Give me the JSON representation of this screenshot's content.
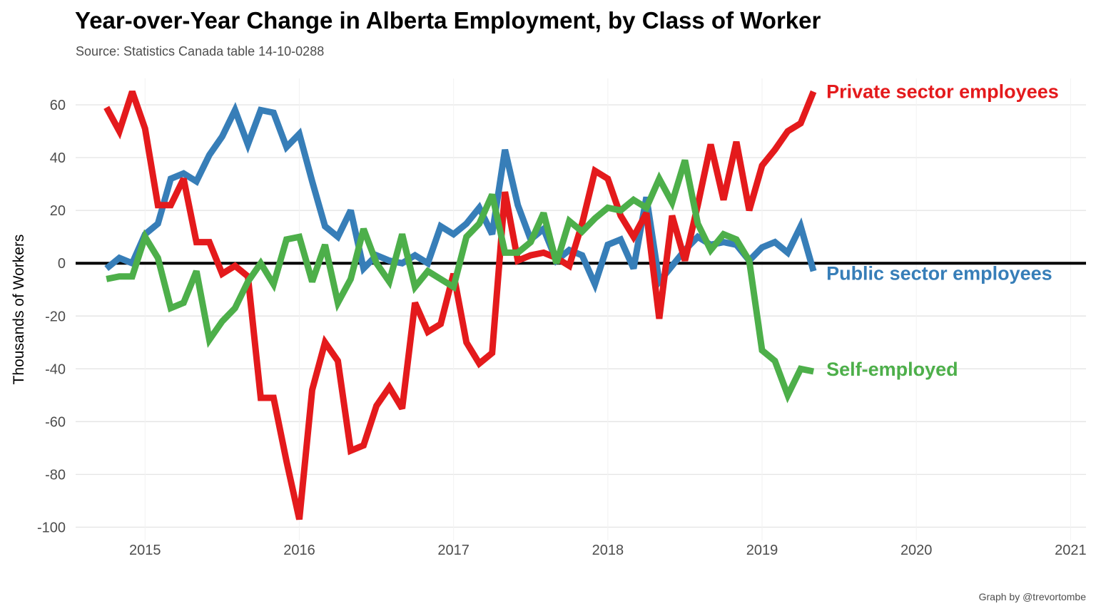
{
  "title": "Year-over-Year Change in Alberta Employment, by Class of Worker",
  "subtitle": "Source: Statistics Canada table 14-10-0288",
  "caption": "Graph by @trevortombe",
  "colors": {
    "private": "#e41a1c",
    "public": "#377eb8",
    "self": "#4daf4a"
  },
  "chart_data": {
    "type": "line",
    "title": "Year-over-Year Change in Alberta Employment, by Class of Worker",
    "subtitle": "Source: Statistics Canada table 14-10-0288",
    "xlabel": "",
    "ylabel": "Thousands of Workers",
    "xlim": [
      2014.55,
      2021.1
    ],
    "ylim": [
      -105,
      70
    ],
    "x_ticks": [
      2015,
      2016,
      2017,
      2018,
      2019,
      2020,
      2021
    ],
    "y_ticks": [
      -100,
      -80,
      -60,
      -40,
      -20,
      0,
      20,
      40,
      60
    ],
    "grid": true,
    "legend": "direct labels at line ends",
    "x": [
      "2014-10",
      "2014-11",
      "2014-12",
      "2015-01",
      "2015-02",
      "2015-03",
      "2015-04",
      "2015-05",
      "2015-06",
      "2015-07",
      "2015-08",
      "2015-09",
      "2015-10",
      "2015-11",
      "2015-12",
      "2016-01",
      "2016-02",
      "2016-03",
      "2016-04",
      "2016-05",
      "2016-06",
      "2016-07",
      "2016-08",
      "2016-09",
      "2016-10",
      "2016-11",
      "2016-12",
      "2017-01",
      "2017-02",
      "2017-03",
      "2017-04",
      "2017-05",
      "2017-06",
      "2017-07",
      "2017-08",
      "2017-09",
      "2017-10",
      "2017-11",
      "2017-12",
      "2018-01",
      "2018-02",
      "2018-03",
      "2018-04",
      "2018-05",
      "2018-06",
      "2018-07",
      "2018-08",
      "2018-09",
      "2018-10",
      "2018-11",
      "2018-12",
      "2019-01",
      "2019-02",
      "2019-03",
      "2019-04",
      "2019-05"
    ],
    "series": [
      {
        "name": "Private sector employees",
        "color": "#e41a1c",
        "values": [
          59,
          50,
          65,
          51,
          22,
          22,
          32,
          8,
          8,
          -4,
          -1,
          -5,
          -51,
          -51,
          -75,
          -97,
          -48,
          -30,
          -37,
          -71,
          -69,
          -54,
          -47,
          -55,
          -15,
          -26,
          -23,
          -4,
          -30,
          -38,
          -34,
          27,
          1,
          3,
          4,
          2,
          -1,
          15,
          35,
          32,
          18,
          10,
          19,
          -21,
          18,
          1,
          22,
          45,
          24,
          46,
          20,
          37,
          43,
          50,
          53,
          65
        ]
      },
      {
        "name": "Public sector employees",
        "color": "#377eb8",
        "values": [
          -2,
          2,
          0,
          11,
          15,
          32,
          34,
          31,
          41,
          48,
          58,
          45,
          58,
          57,
          44,
          49,
          31,
          14,
          10,
          20,
          -2,
          3,
          1,
          0,
          3,
          0,
          14,
          11,
          15,
          21,
          11,
          43,
          22,
          9,
          13,
          1,
          5,
          3,
          -8,
          7,
          9,
          -2,
          25,
          -7,
          -1,
          5,
          10,
          7,
          8,
          7,
          1,
          6,
          8,
          4,
          14,
          -3
        ]
      },
      {
        "name": "Self-employed",
        "color": "#4daf4a",
        "values": [
          -6,
          -5,
          -5,
          10,
          2,
          -17,
          -15,
          -3,
          -29,
          -22,
          -17,
          -7,
          0,
          -8,
          9,
          10,
          -7,
          7,
          -15,
          -6,
          13,
          0,
          -7,
          11,
          -9,
          -3,
          -6,
          -9,
          10,
          15,
          26,
          4,
          4,
          8,
          19,
          0,
          16,
          12,
          17,
          21,
          20,
          24,
          21,
          32,
          23,
          39,
          15,
          5,
          11,
          9,
          1,
          -33,
          -37,
          -50,
          -40,
          -41
        ]
      }
    ],
    "end_labels": [
      "Private sector employees",
      "Public sector employees",
      "Self-employed"
    ]
  }
}
